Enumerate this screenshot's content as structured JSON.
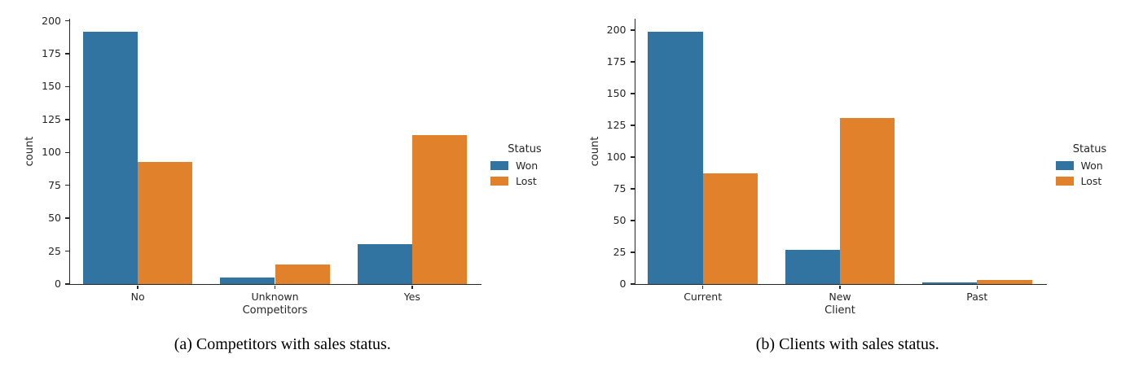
{
  "figure": {
    "background": "#ffffff",
    "subfigures": [
      {
        "caption": "(a) Competitors with sales status."
      },
      {
        "caption": "(b) Clients with sales status."
      }
    ]
  },
  "chart_data": [
    {
      "type": "bar",
      "title": "",
      "categories": [
        "No",
        "Unknown",
        "Yes"
      ],
      "series": [
        {
          "name": "Won",
          "color": "#3274a1",
          "values": [
            192,
            5,
            30
          ]
        },
        {
          "name": "Lost",
          "color": "#e1812c",
          "values": [
            93,
            15,
            113
          ]
        }
      ],
      "xlabel": "Competitors",
      "ylabel": "count",
      "ylim": [
        0,
        200
      ],
      "yticks": [
        0,
        25,
        50,
        75,
        100,
        125,
        150,
        175,
        200
      ],
      "legend_title": "Status",
      "legend_position": "right",
      "grid": false
    },
    {
      "type": "bar",
      "title": "",
      "categories": [
        "Current",
        "New",
        "Past"
      ],
      "series": [
        {
          "name": "Won",
          "color": "#3274a1",
          "values": [
            199,
            27,
            1
          ]
        },
        {
          "name": "Lost",
          "color": "#e1812c",
          "values": [
            87,
            131,
            3
          ]
        }
      ],
      "xlabel": "Client",
      "ylabel": "count",
      "ylim": [
        0,
        200
      ],
      "yticks": [
        0,
        25,
        50,
        75,
        100,
        125,
        150,
        175,
        200
      ],
      "legend_title": "Status",
      "legend_position": "right",
      "grid": false
    }
  ]
}
